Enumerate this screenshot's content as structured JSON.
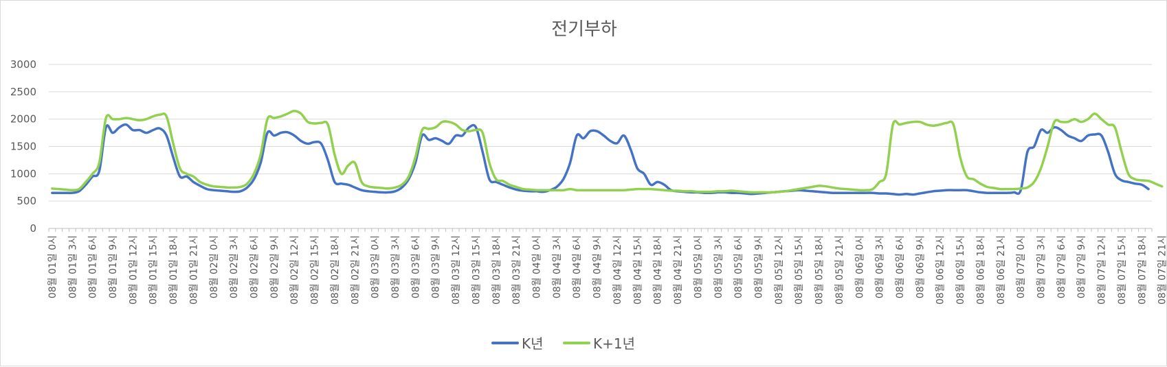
{
  "chart_data": {
    "type": "line",
    "title": "전기부하",
    "xlabel": "",
    "ylabel": "",
    "ylim": [
      0,
      3000
    ],
    "yticks": [
      0,
      500,
      1000,
      1500,
      2000,
      2500,
      3000
    ],
    "grid": true,
    "legend": "bottom",
    "x_tick_labels": [
      "08월 01일 0시",
      "08월 01일 3시",
      "08월 01일 6시",
      "08월 01일 9시",
      "08월 01일 12시",
      "08월 01일 15시",
      "08월 01일 18시",
      "08월 01일 21시",
      "08월 02일 0시",
      "08월 02일 3시",
      "08월 02일 6시",
      "08월 02일 9시",
      "08월 02일 12시",
      "08월 02일 15시",
      "08월 02일 18시",
      "08월 02일 21시",
      "08월 03일 0시",
      "08월 03일 3시",
      "08월 03일 6시",
      "08월 03일 9시",
      "08월 03일 12시",
      "08월 03일 15시",
      "08월 03일 18시",
      "08월 03일 21시",
      "08월 04일 0시",
      "08월 04일 3시",
      "08월 04일 6시",
      "08월 04일 9시",
      "08월 04일 12시",
      "08월 04일 15시",
      "08월 04일 18시",
      "08월 04일 21시",
      "08월 05일 0시",
      "08월 05일 3시",
      "08월 05일 6시",
      "08월 05일 9시",
      "08월 05일 12시",
      "08월 05일 15시",
      "08월 05일 18시",
      "08월 05일 21시",
      "08월 06일 0시",
      "08월 06일 3시",
      "08월 06일 6시",
      "08월 06일 9시",
      "08월 06일 12시",
      "08월 06일 15시",
      "08월 06일 18시",
      "08월 06일 21시",
      "08월 07일 0시",
      "08월 07일 3시",
      "08월 07일 6시",
      "08월 07일 9시",
      "08월 07일 12시",
      "08월 07일 15시",
      "08월 07일 18시",
      "08월 07일 21시"
    ],
    "series": [
      {
        "name": "K년",
        "color": "#4472c4",
        "values": [
          650,
          650,
          650,
          650,
          680,
          800,
          950,
          1050,
          1850,
          1750,
          1850,
          1900,
          1800,
          1800,
          1750,
          1800,
          1830,
          1700,
          1300,
          950,
          950,
          850,
          780,
          720,
          700,
          690,
          680,
          670,
          680,
          750,
          900,
          1200,
          1750,
          1700,
          1750,
          1760,
          1700,
          1600,
          1550,
          1580,
          1550,
          1250,
          850,
          820,
          800,
          750,
          700,
          680,
          670,
          660,
          660,
          680,
          750,
          900,
          1200,
          1700,
          1620,
          1650,
          1600,
          1550,
          1700,
          1700,
          1850,
          1850,
          1400,
          900,
          850,
          800,
          750,
          710,
          690,
          680,
          680,
          670,
          700,
          760,
          900,
          1200,
          1700,
          1650,
          1780,
          1780,
          1700,
          1600,
          1560,
          1700,
          1450,
          1100,
          1000,
          800,
          850,
          800,
          700,
          680,
          670,
          660,
          660,
          650,
          650,
          660,
          660,
          650,
          650,
          640,
          630,
          640,
          650,
          660,
          670,
          680,
          690,
          700,
          690,
          680,
          670,
          660,
          650,
          650,
          650,
          650,
          650,
          650,
          650,
          640,
          640,
          630,
          620,
          630,
          620,
          640,
          660,
          680,
          690,
          700,
          700,
          700,
          700,
          680,
          660,
          650,
          650,
          650,
          650,
          660,
          700,
          1400,
          1500,
          1800,
          1750,
          1850,
          1800,
          1700,
          1650,
          1600,
          1700,
          1720,
          1700,
          1400,
          1000,
          880,
          850,
          820,
          800,
          720
        ]
      },
      {
        "name": "K+1년",
        "color": "#92d050",
        "values": [
          730,
          720,
          710,
          700,
          720,
          850,
          1000,
          1200,
          2020,
          2000,
          2000,
          2020,
          2000,
          1980,
          2000,
          2050,
          2080,
          2050,
          1550,
          1100,
          1000,
          950,
          850,
          800,
          770,
          760,
          750,
          750,
          760,
          820,
          1000,
          1350,
          2000,
          2020,
          2050,
          2100,
          2150,
          2100,
          1950,
          1920,
          1930,
          1900,
          1350,
          1000,
          1150,
          1200,
          850,
          770,
          750,
          740,
          730,
          750,
          800,
          950,
          1300,
          1800,
          1820,
          1850,
          1950,
          1950,
          1900,
          1800,
          1780,
          1800,
          1750,
          1200,
          900,
          870,
          800,
          760,
          720,
          710,
          700,
          700,
          700,
          700,
          700,
          720,
          700,
          700,
          700,
          700,
          700,
          700,
          700,
          700,
          710,
          720,
          720,
          720,
          710,
          700,
          690,
          690,
          680,
          680,
          670,
          670,
          670,
          680,
          680,
          690,
          680,
          670,
          660,
          660,
          660,
          660,
          670,
          680,
          700,
          720,
          740,
          760,
          780,
          770,
          750,
          730,
          720,
          710,
          700,
          700,
          720,
          850,
          1000,
          1900,
          1900,
          1930,
          1950,
          1950,
          1900,
          1880,
          1900,
          1930,
          1900,
          1300,
          950,
          900,
          820,
          760,
          740,
          720,
          720,
          720,
          730,
          750,
          850,
          1100,
          1500,
          1950,
          1950,
          1950,
          2000,
          1950,
          2000,
          2100,
          2000,
          1900,
          1850,
          1400,
          1000,
          900,
          880,
          870,
          820,
          770
        ]
      }
    ]
  }
}
